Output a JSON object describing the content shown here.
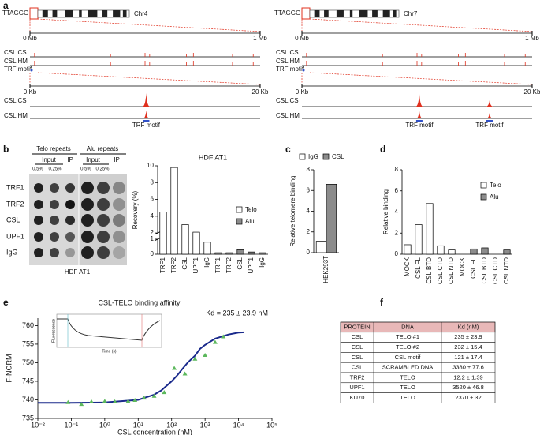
{
  "panel_labels": [
    "a",
    "b",
    "c",
    "d",
    "e",
    "f"
  ],
  "genome": [
    {
      "motif": "TTAGGG",
      "chrom": "Chr4",
      "range1": [
        "0 Mb",
        "1 Mb"
      ],
      "tracks1": [
        "CSL CS",
        "CSL HM",
        "TRF motif"
      ],
      "range2": [
        "0 Kb",
        "20 Kb"
      ],
      "tracks2": [
        "CSL CS",
        "CSL HM"
      ],
      "motif_labels": [
        "TRF motif"
      ]
    },
    {
      "motif": "TTAGGG",
      "chrom": "Chr7",
      "range1": [
        "0 Mb",
        "1 Mb"
      ],
      "tracks1": [
        "CSL CS",
        "CSL HM",
        "TRF motif"
      ],
      "range2": [
        "0 Kb",
        "20 Kb"
      ],
      "tracks2": [
        "CSL CS",
        "CSL HM"
      ],
      "motif_labels": [
        "TRF motif",
        "TRF motif"
      ]
    }
  ],
  "blot": {
    "groups": [
      "Telo repeats",
      "Alu repeats"
    ],
    "fractions": [
      "Input",
      "IP",
      "Input",
      "IP"
    ],
    "amounts": [
      "0.5%",
      "0.25%",
      "0.5%",
      "0.25%"
    ],
    "rows": [
      "TRF1",
      "TRF2",
      "CSL",
      "UPF1",
      "IgG"
    ],
    "caption": "HDF AT1"
  },
  "chart_data": [
    {
      "type": "bar",
      "title": "HDF AT1",
      "y_label": "Recovery (%)",
      "categories": [
        "TRF1",
        "TRF2",
        "CSL",
        "UPF1",
        "IgG",
        "TRF1",
        "TRF2",
        "CSL",
        "UPF1",
        "IgG"
      ],
      "series": [
        {
          "name": "Telo",
          "color": "#ffffff",
          "values": [
            4.5,
            9.8,
            3.0,
            2.1,
            0.8,
            null,
            null,
            null,
            null,
            null
          ]
        },
        {
          "name": "Alu",
          "color": "#8c8c8c",
          "values": [
            null,
            null,
            null,
            null,
            null,
            0.1,
            0.1,
            0.3,
            0.15,
            0.1
          ]
        }
      ],
      "ylim": [
        [
          0,
          1
        ],
        [
          2,
          10
        ]
      ],
      "yticks": [
        0,
        1,
        2,
        4,
        6,
        8,
        10
      ],
      "legend": "right"
    },
    {
      "type": "bar",
      "y_label": "Relative telomere binding",
      "categories": [
        "HEK293T"
      ],
      "series": [
        {
          "name": "IgG",
          "color": "#ffffff",
          "values": [
            1.1
          ]
        },
        {
          "name": "CSL",
          "color": "#8c8c8c",
          "values": [
            6.6
          ]
        }
      ],
      "ylim": [
        0,
        8
      ],
      "yticks": [
        0,
        2,
        4,
        6,
        8
      ],
      "legend": "top"
    },
    {
      "type": "bar",
      "y_label": "Relative binding",
      "categories": [
        "MOCK",
        "CSL FL",
        "CSL BTD",
        "CSL CTD",
        "CSL NTD",
        "MOCK",
        "CSL FL",
        "CSL BTD",
        "CSL CTD",
        "CSL NTD"
      ],
      "series": [
        {
          "name": "Telo",
          "color": "#ffffff",
          "values": [
            0.9,
            2.8,
            4.8,
            0.8,
            0.4,
            null,
            null,
            null,
            null,
            null
          ]
        },
        {
          "name": "Alu",
          "color": "#8c8c8c",
          "values": [
            null,
            null,
            null,
            null,
            null,
            null,
            0.5,
            0.6,
            null,
            0.4
          ]
        }
      ],
      "ylim": [
        0,
        8
      ],
      "yticks": [
        0,
        2,
        4,
        6,
        8
      ],
      "legend": "upper-right"
    },
    {
      "type": "scatter",
      "title": "CSL-TELO binding affinity",
      "annotation": "Kd = 235 ± 23.9 nM",
      "x_label": "CSL concentration (nM)",
      "y_label": "F-NORM",
      "x_scale": "log",
      "color": "#5cb85c",
      "x": [
        0.08,
        0.2,
        0.4,
        1,
        2,
        5,
        8,
        15,
        30,
        60,
        120,
        250,
        500,
        1000,
        2000,
        3500
      ],
      "values": [
        739.3,
        738.8,
        739.5,
        739.6,
        739.5,
        739.6,
        739.9,
        740.5,
        741.0,
        742.0,
        748.5,
        747.0,
        751.0,
        752.0,
        755.5,
        757.0
      ],
      "fit": {
        "color": "#1a2a8c",
        "x": [
          0.01,
          0.1,
          1,
          10,
          30,
          50,
          100,
          150,
          200,
          300,
          500,
          700,
          1000,
          2000,
          5000,
          10000,
          15000
        ],
        "values": [
          739.2,
          739.2,
          739.3,
          740.0,
          741.4,
          742.6,
          745.0,
          746.7,
          748.1,
          750.0,
          751.9,
          753.7,
          754.8,
          756.5,
          757.6,
          758.1,
          758.2
        ]
      },
      "xlim": [
        0.01,
        100000
      ],
      "xticks": [
        {
          "value": 0.01,
          "label": "10⁻²"
        },
        {
          "value": 0.1,
          "label": "10⁻¹"
        },
        {
          "value": 1,
          "label": "10⁰"
        },
        {
          "value": 10,
          "label": "10¹"
        },
        {
          "value": 100,
          "label": "10²"
        },
        {
          "value": 1000,
          "label": "10³"
        },
        {
          "value": 10000,
          "label": "10⁴"
        },
        {
          "value": 100000,
          "label": "10⁵"
        }
      ],
      "ylim": [
        735,
        762
      ],
      "yticks": [
        735,
        740,
        745,
        750,
        755,
        760
      ],
      "inset": {
        "x_label": "Time (s)",
        "y_label": "Fluorescence"
      }
    }
  ],
  "table": {
    "header": [
      "PROTEIN",
      "DNA",
      "Kd (nM)"
    ],
    "rows": [
      [
        "CSL",
        "TELO #1",
        "235 ± 23.9"
      ],
      [
        "CSL",
        "TELO #2",
        "232 ± 15.4"
      ],
      [
        "CSL",
        "CSL motif",
        "121 ± 17.4"
      ],
      [
        "CSL",
        "SCRAMBLED DNA",
        "3380 ± 77.6"
      ],
      [
        "TRF2",
        "TELO",
        "12.2 ± 1.39"
      ],
      [
        "UPF1",
        "TELO",
        "3520 ± 46.8"
      ],
      [
        "KU70",
        "TELO",
        "2370 ± 32"
      ]
    ]
  }
}
